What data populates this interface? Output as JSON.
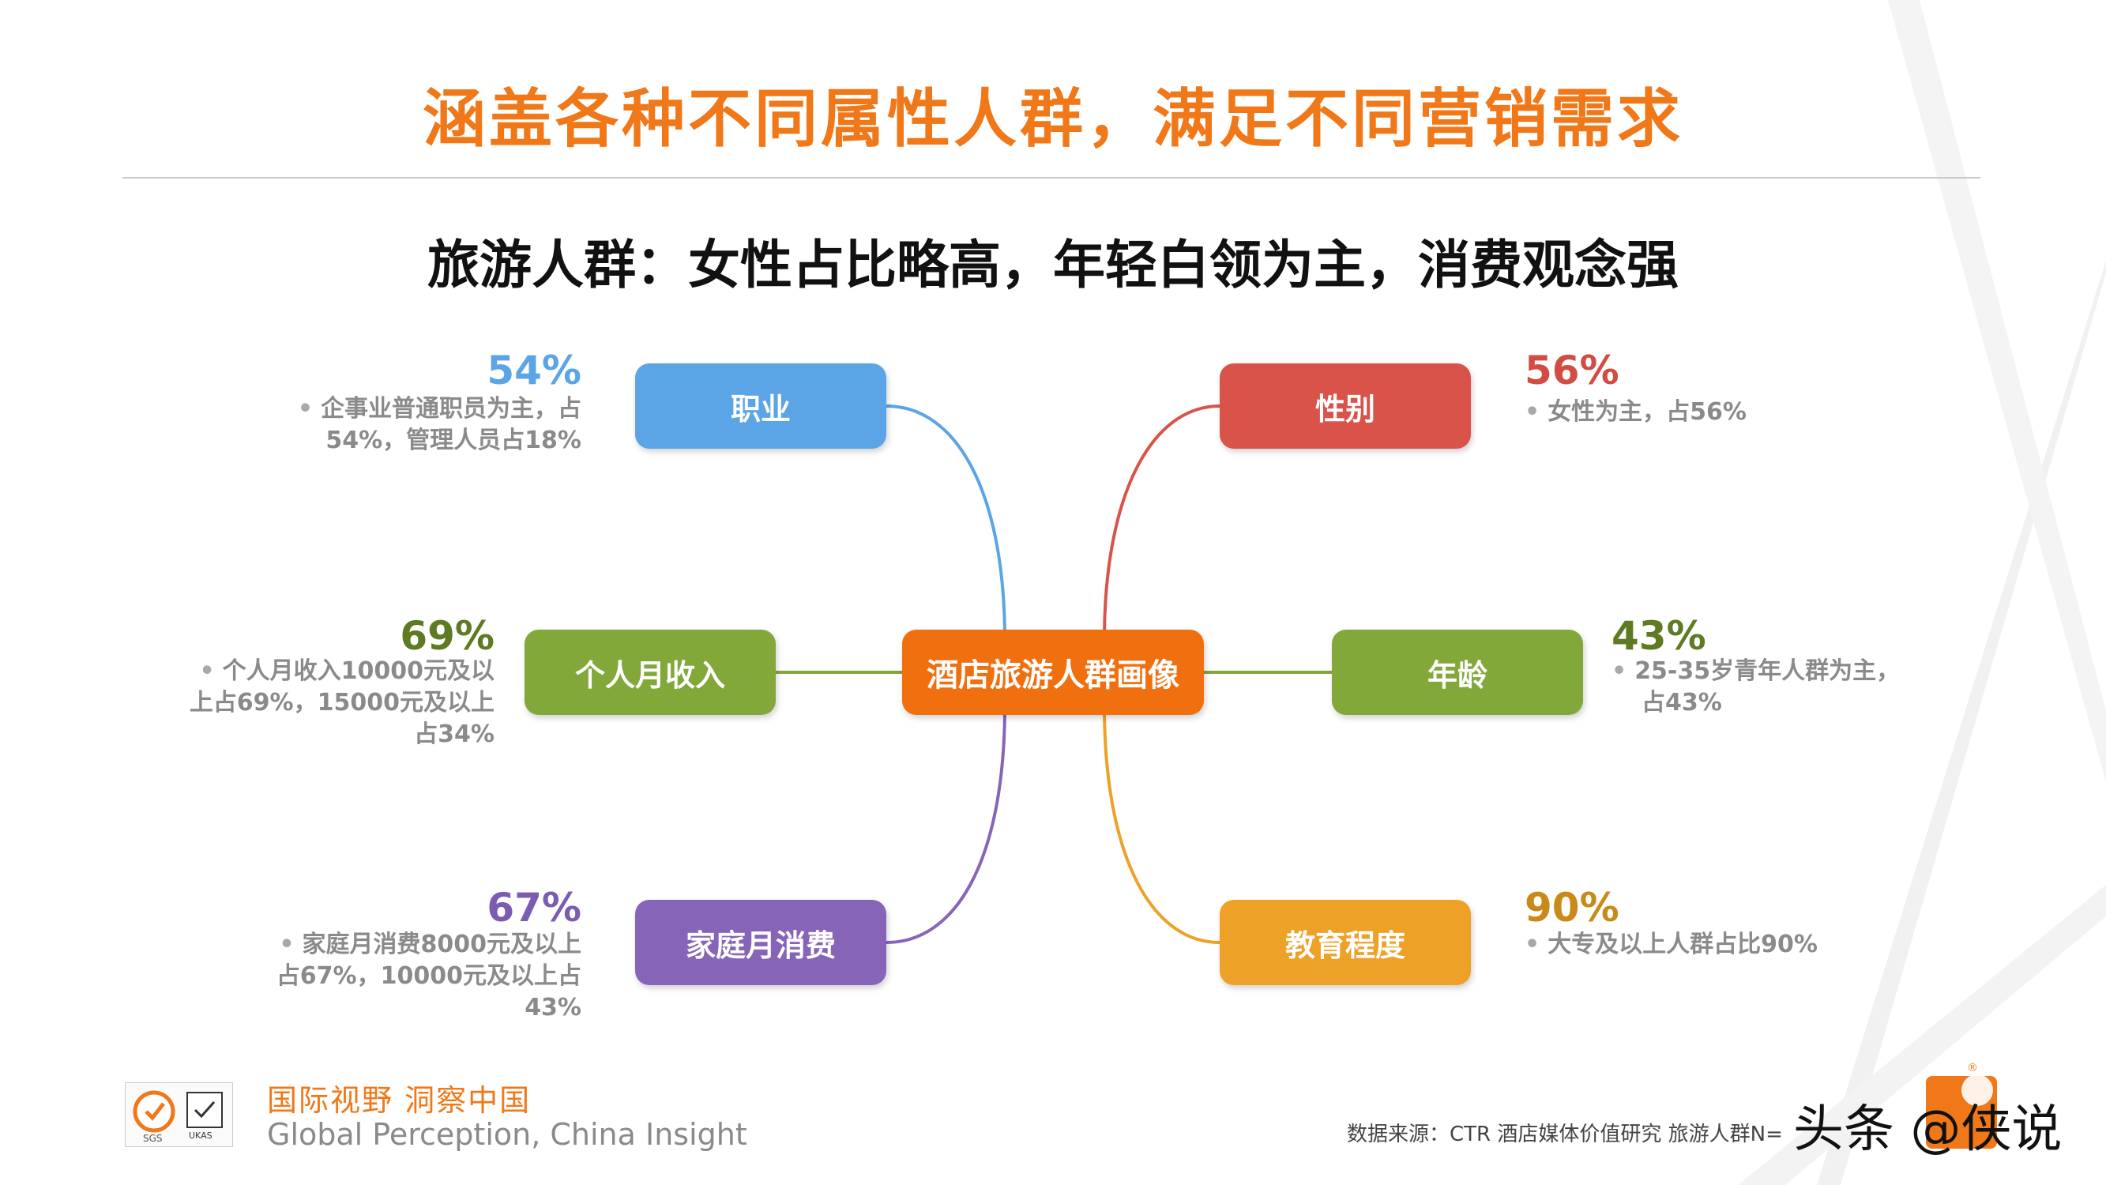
{
  "title": "涵盖各种不同属性人群，满足不同营销需求",
  "subtitle": "旅游人群：女性占比略高，年轻白领为主，消费观念强",
  "center": {
    "label": "酒店旅游人群画像",
    "color": "#F07010"
  },
  "nodes": {
    "occupation": {
      "label": "职业",
      "color": "#5BA4E6",
      "pct": "54%",
      "pct_color": "#5BA4E6",
      "desc": [
        "企事业普通职员为主，占",
        "54%，管理人员占18%"
      ]
    },
    "income": {
      "label": "个人月收入",
      "color": "#82A83A",
      "pct": "69%",
      "pct_color": "#5E7A22",
      "desc": [
        "个人月收入10000元及以",
        "上占69%，15000元及以上",
        "占34%"
      ]
    },
    "family": {
      "label": "家庭月消费",
      "color": "#8665B9",
      "pct": "67%",
      "pct_color": "#7B5CB0",
      "desc": [
        "家庭月消费8000元及以上",
        "占67%，10000元及以上占",
        "43%"
      ]
    },
    "gender": {
      "label": "性别",
      "color": "#D9534A",
      "pct": "56%",
      "pct_color": "#D24C44",
      "desc": [
        "女性为主，占56%"
      ]
    },
    "age": {
      "label": "年龄",
      "color": "#82A83A",
      "pct": "43%",
      "pct_color": "#5E7A22",
      "desc": [
        "25-35岁青年人群为主，",
        "占43%"
      ]
    },
    "education": {
      "label": "教育程度",
      "color": "#EEA127",
      "pct": "90%",
      "pct_color": "#C88A18",
      "desc": [
        "大专及以上人群占比90%"
      ]
    }
  },
  "footer": {
    "slogan_cn": "国际视野  洞察中国",
    "slogan_en": "Global Perception,  China Insight",
    "logo_sgs": "SGS",
    "logo_ukas": "UKAS",
    "source": "数据来源：CTR 酒店媒体价值研究  旅游人群N=",
    "watermark": "头条 @侠说"
  }
}
